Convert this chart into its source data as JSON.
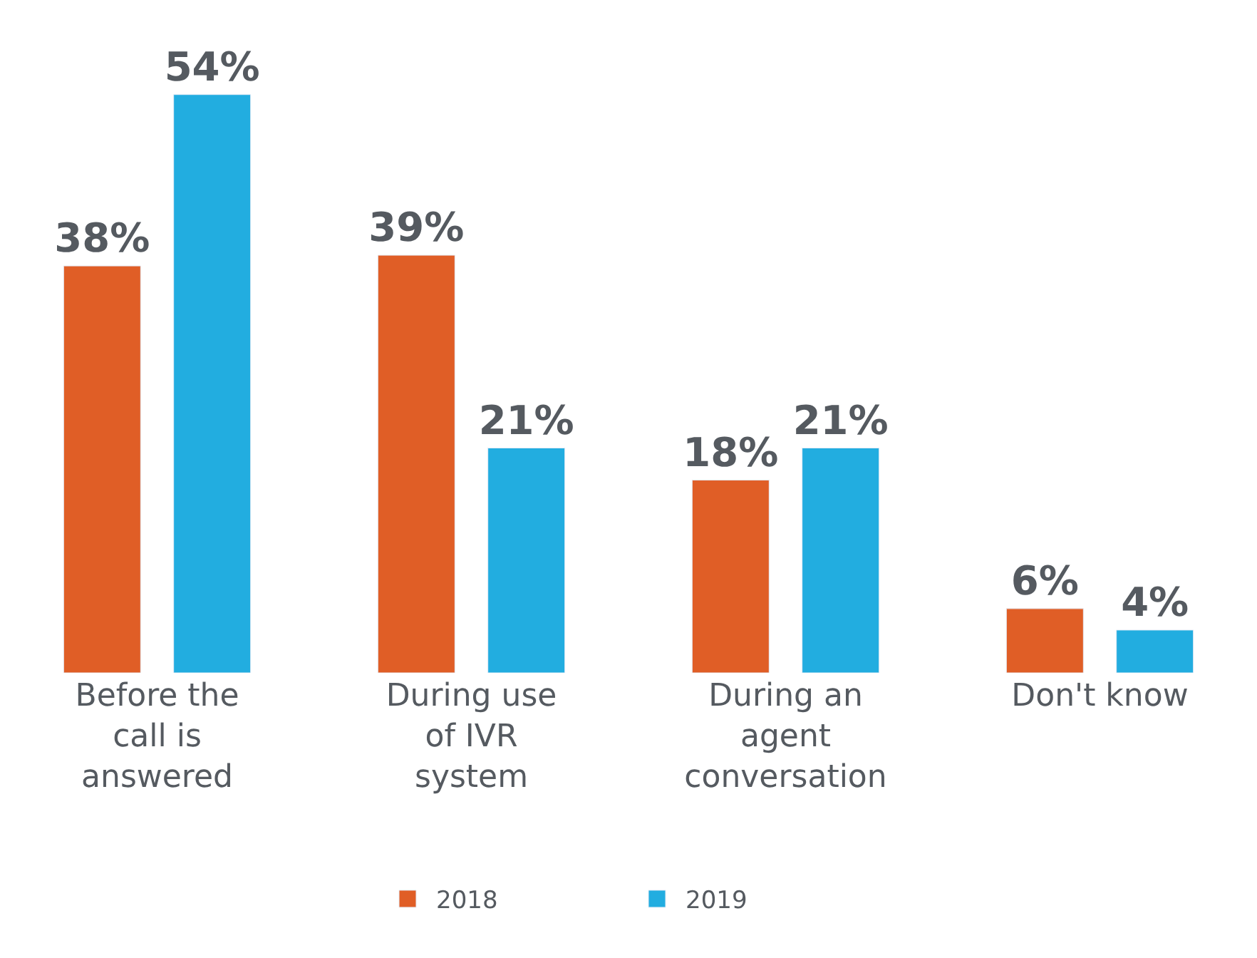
{
  "chart_data": {
    "type": "bar",
    "categories": [
      "Before the call is answered",
      "During use of IVR system",
      "During an agent conversation",
      "Don't know"
    ],
    "series": [
      {
        "name": "2018",
        "color": "#e05e26",
        "values": [
          38,
          39,
          18,
          6
        ],
        "value_labels": [
          "38%",
          "39%",
          "18%",
          "6%"
        ]
      },
      {
        "name": "2019",
        "color": "#22ade0",
        "values": [
          54,
          21,
          21,
          4
        ],
        "value_labels": [
          "54%",
          "21%",
          "21%",
          "4%"
        ]
      }
    ],
    "legend": "bottom"
  }
}
